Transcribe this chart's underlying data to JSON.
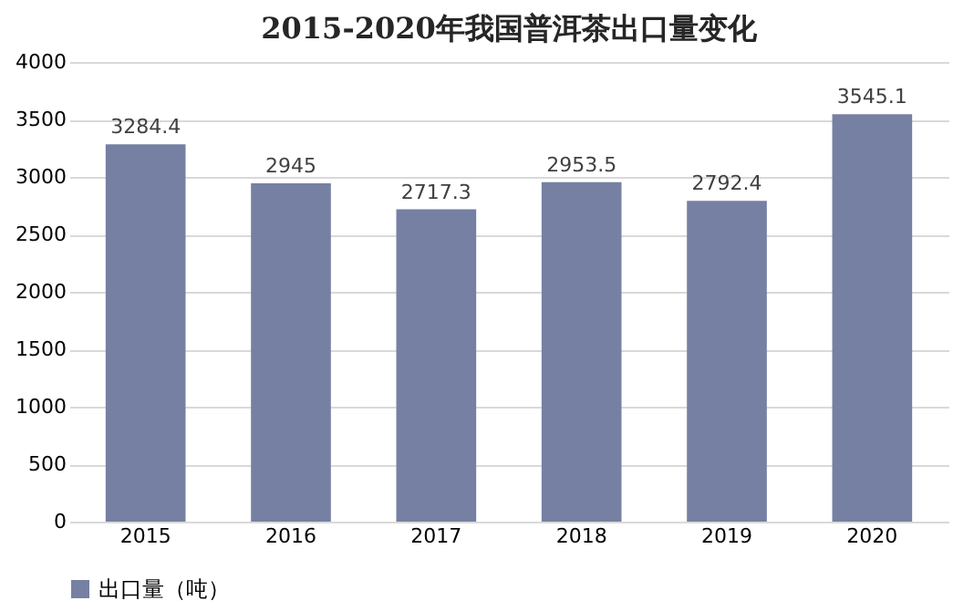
{
  "chart_data": {
    "type": "bar",
    "title": "2015-2020年我国普洱茶出口量变化",
    "categories": [
      "2015",
      "2016",
      "2017",
      "2018",
      "2019",
      "2020"
    ],
    "series": [
      {
        "name": "出口量（吨）",
        "color": "#7680a3",
        "values": [
          3284.4,
          2945,
          2717.3,
          2953.5,
          2792.4,
          3545.1
        ]
      }
    ],
    "ylim": [
      0,
      4000
    ],
    "yticks": [
      0,
      500,
      1000,
      1500,
      2000,
      2500,
      3000,
      3500,
      4000
    ],
    "grid": "y",
    "legend": "bottom",
    "data_labels": true
  }
}
